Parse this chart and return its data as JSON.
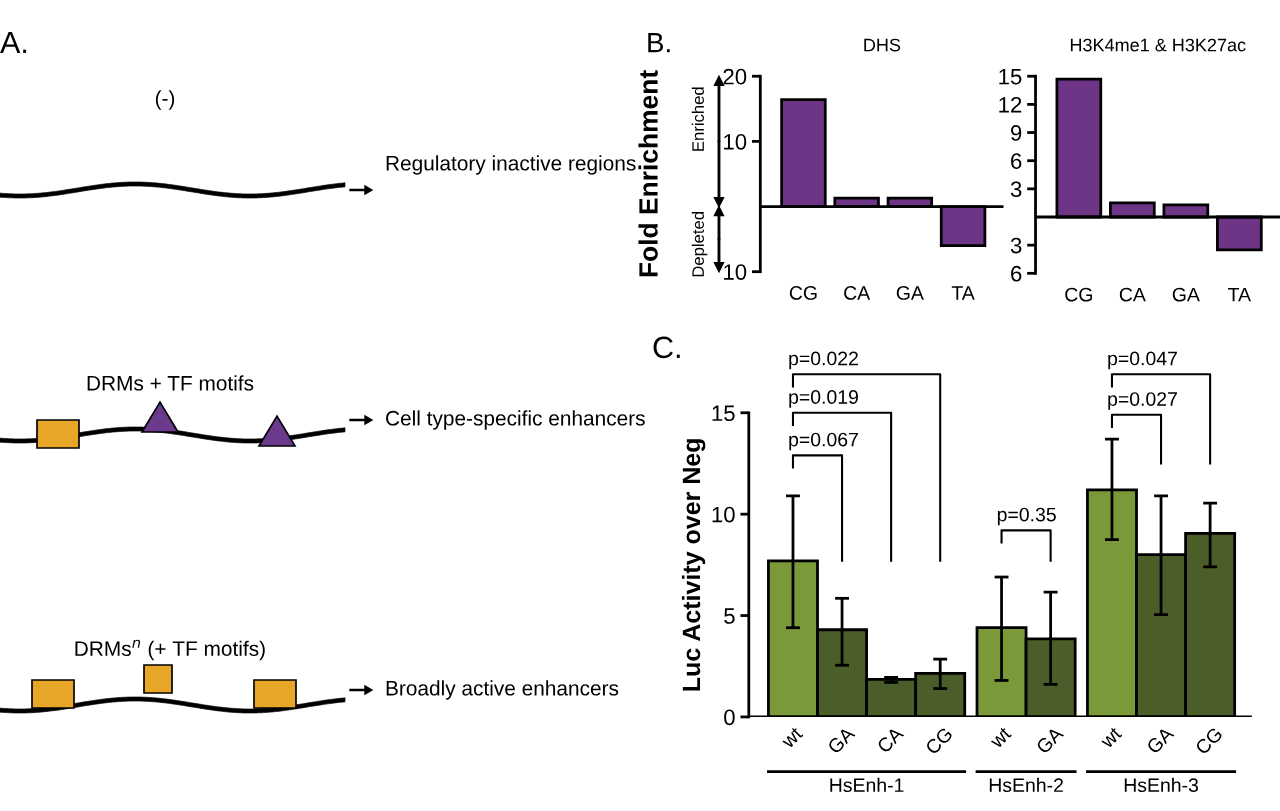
{
  "chart_data": [
    {
      "type": "other",
      "annotations": [
        "A.",
        "(-)",
        "Regulatory inactive regions",
        "DRMs + TF motifs",
        "Cell type-specific enhancers",
        "DRMs$^{n}$ (+ TF motifs)",
        "Broadly active enhancers"
      ]
    },
    {
      "type": "bar",
      "title": "DHS",
      "ylabel": "Fold Enrichment",
      "categories": [
        "CG",
        "CA",
        "GA",
        "TA"
      ],
      "values": [
        16.4,
        1.3,
        1.3,
        -6.0
      ],
      "color": "#6e3587",
      "ylim": [
        -10,
        20
      ],
      "yticks": [
        {
          "value": -10,
          "label": "10"
        },
        10,
        20
      ],
      "annotations": [
        "B.",
        "Enriched",
        "Depleted"
      ]
    },
    {
      "type": "bar",
      "title": "H3K4me1 & H3K27ac",
      "categories": [
        "CG",
        "CA",
        "GA",
        "TA"
      ],
      "values": [
        14.7,
        1.5,
        1.3,
        -3.5
      ],
      "color": "#6e3587",
      "ylim": [
        -6,
        15
      ],
      "yticks": [
        {
          "value": -6,
          "label": "6"
        },
        {
          "value": -3,
          "label": "3"
        },
        3,
        6,
        9,
        12,
        15
      ]
    },
    {
      "type": "bar",
      "ylabel": "Luc Activity over Neg",
      "categories": [
        "wt",
        "GA",
        "CA",
        "CG",
        "wt",
        "GA",
        "wt",
        "GA",
        "CG"
      ],
      "values": [
        7.7,
        4.3,
        1.85,
        2.15,
        4.4,
        3.85,
        11.2,
        8.0,
        9.05
      ],
      "colors": [
        "#7a9a3a",
        "#4b5e29",
        "#4b5e29",
        "#4b5e29",
        "#7a9a3a",
        "#4b5e29",
        "#7a9a3a",
        "#4b5e29",
        "#4b5e29"
      ],
      "errors": [
        [
          4.4,
          10.9
        ],
        [
          2.55,
          5.85
        ],
        [
          1.7,
          1.95
        ],
        [
          1.4,
          2.85
        ],
        [
          1.8,
          6.9
        ],
        [
          1.6,
          6.15
        ],
        [
          8.75,
          13.7
        ],
        [
          5.05,
          10.9
        ],
        [
          7.4,
          10.55
        ]
      ],
      "ylim": [
        0,
        15
      ],
      "yticks": [
        0,
        5,
        10,
        15
      ],
      "annotations": [
        "C.",
        "p=0.067",
        "p=0.019",
        "p=0.022",
        "p=0.35",
        "p=0.027",
        "p=0.047",
        "HsEnh-1",
        "HsEnh-2",
        "HsEnh-3"
      ]
    }
  ]
}
